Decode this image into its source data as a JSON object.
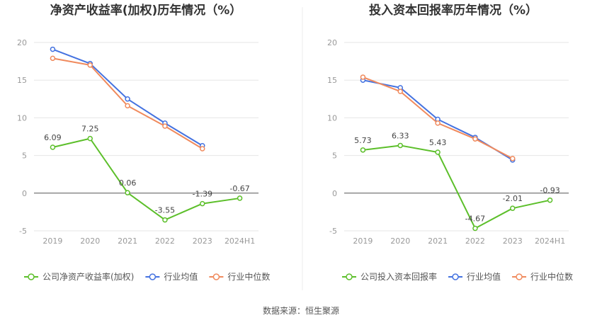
{
  "source": "数据来源：恒生聚源",
  "chart_data": [
    {
      "type": "line",
      "title": "净资产收益率(加权)历年情况（%）",
      "categories": [
        "2019",
        "2020",
        "2021",
        "2022",
        "2023",
        "2024H1"
      ],
      "ylim": [
        -5,
        20
      ],
      "yticks": [
        -5,
        0,
        5,
        10,
        15,
        20
      ],
      "grid": true,
      "legend_position": "bottom",
      "series": [
        {
          "name": "公司净资产收益率(加权)",
          "color": "#5cbf2a",
          "values": [
            6.09,
            7.25,
            0.06,
            -3.55,
            -1.39,
            -0.67
          ],
          "labels": [
            "6.09",
            "7.25",
            "0.06",
            "-3.55",
            "-1.39",
            "-0.67"
          ]
        },
        {
          "name": "行业均值",
          "color": "#4472e0",
          "values": [
            19.1,
            17.2,
            12.5,
            9.3,
            6.3,
            null
          ]
        },
        {
          "name": "行业中位数",
          "color": "#f08a5d",
          "values": [
            17.9,
            17.0,
            11.6,
            8.9,
            5.9,
            null
          ]
        }
      ]
    },
    {
      "type": "line",
      "title": "投入资本回报率历年情况（%）",
      "categories": [
        "2019",
        "2020",
        "2021",
        "2022",
        "2023",
        "2024H1"
      ],
      "ylim": [
        -5,
        20
      ],
      "yticks": [
        -5,
        0,
        5,
        10,
        15,
        20
      ],
      "grid": true,
      "legend_position": "bottom",
      "series": [
        {
          "name": "公司投入资本回报率",
          "color": "#5cbf2a",
          "values": [
            5.73,
            6.33,
            5.43,
            -4.67,
            -2.01,
            -0.93
          ],
          "labels": [
            "5.73",
            "6.33",
            "5.43",
            "-4.67",
            "-2.01",
            "-0.93"
          ]
        },
        {
          "name": "行业均值",
          "color": "#4472e0",
          "values": [
            15.0,
            14.0,
            9.8,
            7.4,
            4.4,
            null
          ]
        },
        {
          "name": "行业中位数",
          "color": "#f08a5d",
          "values": [
            15.4,
            13.5,
            9.3,
            7.2,
            4.6,
            null
          ]
        }
      ]
    }
  ]
}
